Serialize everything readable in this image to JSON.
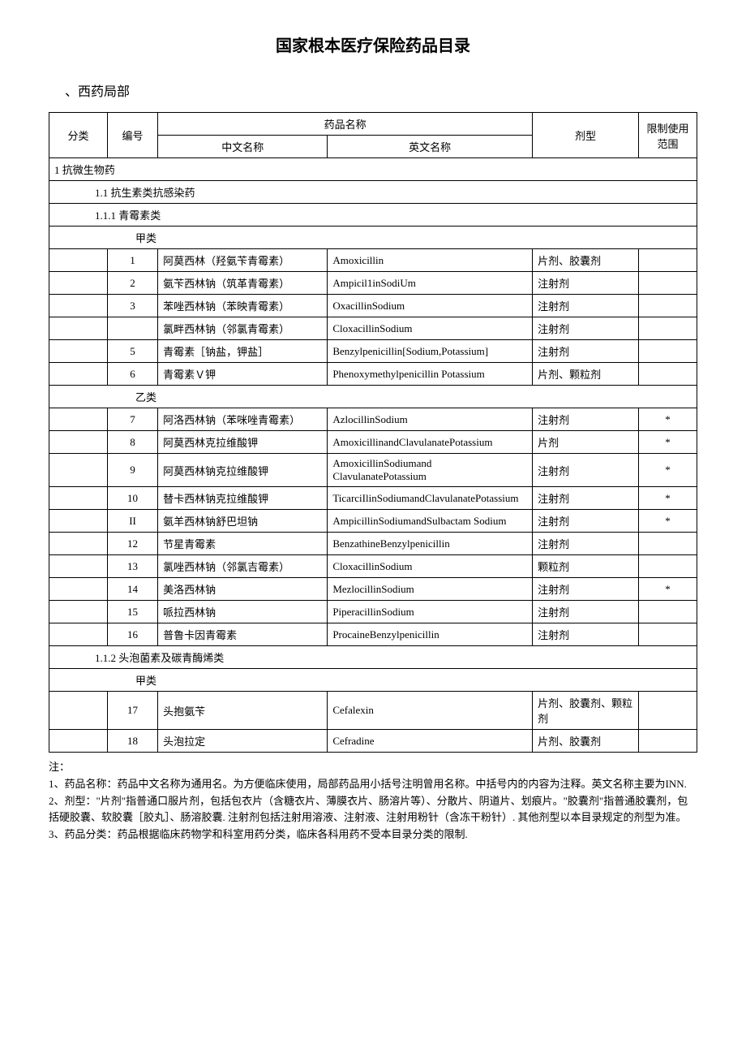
{
  "title": "国家根本医疗保险药品目录",
  "section": "、西药局部",
  "headers": {
    "cat": "分类",
    "num": "编号",
    "name": "药品名称",
    "cn": "中文名称",
    "en": "英文名称",
    "form": "剂型",
    "limit": "限制使用范围"
  },
  "groups": [
    {
      "label": "1 抗微生物药",
      "indent": 0
    },
    {
      "label": "1.1 抗生素类抗感染药",
      "indent": 1
    },
    {
      "label": "1.1.1 青霉素类",
      "indent": 1
    },
    {
      "label": "甲类",
      "indent": 2
    }
  ],
  "rows1": [
    {
      "n": "1",
      "cn": "阿莫西林（羟氨苄青霉素）",
      "en": "Amoxicillin",
      "f": "片剂、胶囊剂",
      "l": ""
    },
    {
      "n": "2",
      "cn": "氨苄西林钠（筑革青霉素）",
      "en": "Ampicil1inSodiUm",
      "f": "注射剂",
      "l": ""
    },
    {
      "n": "3",
      "cn": "苯唑西林钠（苯映青霉素）",
      "en": "OxacillinSodium",
      "f": "注射剂",
      "l": ""
    },
    {
      "n": "",
      "cn": "氯畔西林钠（邻氯青霉素）",
      "en": "CloxacillinSodium",
      "f": "注射剂",
      "l": ""
    },
    {
      "n": "5",
      "cn": "青霉素［钠盐，钾盐］",
      "en": "Benzylpenicillin[Sodium,Potassium]",
      "f": "注射剂",
      "l": ""
    },
    {
      "n": "6",
      "cn": "青霉素Ｖ钾",
      "en": "Phenoxymethylpenicillin Potassium",
      "f": "片剂、颗粒剂",
      "l": ""
    }
  ],
  "group2": {
    "label": "乙类",
    "indent": 2
  },
  "rows2": [
    {
      "n": "7",
      "cn": "阿洛西林钠（苯咪唑青霉素）",
      "en": "AzlocillinSodium",
      "f": "注射剂",
      "l": "*"
    },
    {
      "n": "8",
      "cn": "阿莫西林克拉维酸钾",
      "en": "AmoxicillinandClavulanatePotassium",
      "f": "片剂",
      "l": "*"
    },
    {
      "n": "9",
      "cn": "阿莫西林钠克拉维酸钾",
      "en": "AmoxicillinSodiumand ClavulanatePotassium",
      "f": "注射剂",
      "l": "*"
    },
    {
      "n": "10",
      "cn": "替卡西林钠克拉维酸钾",
      "en": "TicarciIlinSodiumandClavulanatePotassium",
      "f": "注射剂",
      "l": "*"
    },
    {
      "n": "II",
      "cn": "氨羊西林钠舒巴坦钠",
      "en": "AmpicillinSodiumandSulbactam Sodium",
      "f": "注射剂",
      "l": "*"
    },
    {
      "n": "12",
      "cn": "节星青霉素",
      "en": "BenzathineBenzylpenicillin",
      "f": "注射剂",
      "l": ""
    },
    {
      "n": "13",
      "cn": "氯唑西林钠（邻氯吉霉素）",
      "en": "CloxacillinSodium",
      "f": "颗粒剂",
      "l": ""
    },
    {
      "n": "14",
      "cn": "美洛西林钠",
      "en": "MezlocillinSodium",
      "f": "注射剂",
      "l": "*"
    },
    {
      "n": "15",
      "cn": "哌拉西林钠",
      "en": "PiperacillinSodium",
      "f": "注射剂",
      "l": ""
    },
    {
      "n": "16",
      "cn": "普鲁卡因青霉素",
      "en": "ProcaineBenzylpenicillin",
      "f": "注射剂",
      "l": ""
    }
  ],
  "groups3": [
    {
      "label": "1.1.2 头泡菌素及碳青酶烯类",
      "indent": 1
    },
    {
      "label": "甲类",
      "indent": 2
    }
  ],
  "rows3": [
    {
      "n": "17",
      "cn": "头抱氨苄",
      "en": "Cefalexin",
      "f": "片剂、胶囊剂、颗粒剂",
      "l": ""
    },
    {
      "n": "18",
      "cn": "头泡拉定",
      "en": "Cefradine",
      "f": "片剂、胶囊剂",
      "l": ""
    }
  ],
  "notes": [
    "注：",
    "1、药品名称：药品中文名称为通用名。为方便临床使用，局部药品用小括号注明曾用名称。中括号内的内容为注释。英文名称主要为INN.",
    "2、剂型：\"片剂\"指普通口服片剂，包括包衣片（含糖衣片、薄膜衣片、肠溶片等）、分散片、阴道片、划痕片。\"胶囊剂\"指普通胶囊剂，包括硬胶囊、软胶囊［胶丸］、肠溶胶囊. 注射剂包括注射用溶液、注射液、注射用粉针（含冻干粉针）. 其他剂型以本目录规定的剂型为准。",
    "3、药品分类：药品根据临床药物学和科室用药分类，临床各科用药不受本目录分类的限制."
  ]
}
